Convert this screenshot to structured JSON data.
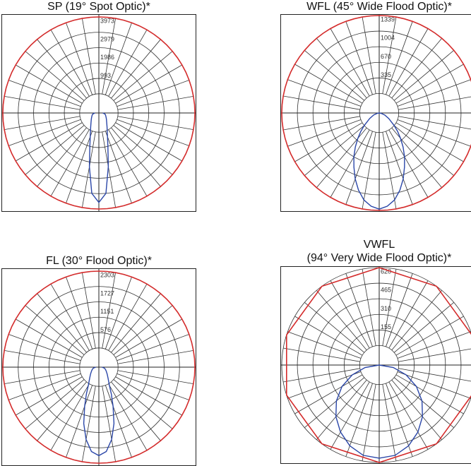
{
  "chart_data": [
    {
      "type": "polar",
      "title": "SP (19° Spot Optic)*",
      "ticks": [
        "993",
        "1986",
        "2979",
        "3973"
      ],
      "rmax": 4400,
      "outline_sides": 72,
      "outline_color": "#d42b2b",
      "curve_color": "#2a46a8",
      "curve": [
        [
          0,
          4100
        ],
        [
          5,
          3700
        ],
        [
          10,
          2500
        ],
        [
          15,
          1600
        ],
        [
          20,
          1150
        ],
        [
          25,
          900
        ],
        [
          30,
          750
        ],
        [
          40,
          560
        ],
        [
          50,
          450
        ],
        [
          60,
          380
        ],
        [
          70,
          330
        ],
        [
          80,
          290
        ],
        [
          90,
          180
        ]
      ]
    },
    {
      "type": "polar",
      "title": "WFL (45° Wide Flood Optic)*",
      "ticks": [
        "335",
        "670",
        "1004",
        "1339"
      ],
      "rmax": 1500,
      "outline_sides": 72,
      "outline_color": "#d42b2b",
      "curve_color": "#2a46a8",
      "curve": [
        [
          0,
          1480
        ],
        [
          5,
          1440
        ],
        [
          10,
          1360
        ],
        [
          15,
          1230
        ],
        [
          20,
          1080
        ],
        [
          25,
          920
        ],
        [
          30,
          780
        ],
        [
          35,
          640
        ],
        [
          40,
          510
        ],
        [
          45,
          400
        ],
        [
          50,
          300
        ],
        [
          60,
          170
        ],
        [
          70,
          90
        ],
        [
          80,
          30
        ],
        [
          90,
          0
        ]
      ]
    },
    {
      "type": "polar",
      "title": "FL (30° Flood Optic)*",
      "ticks": [
        "576",
        "1151",
        "1727",
        "2303"
      ],
      "rmax": 2550,
      "outline_sides": 72,
      "outline_color": "#d42b2b",
      "curve_color": "#2a46a8",
      "curve": [
        [
          0,
          2350
        ],
        [
          5,
          2250
        ],
        [
          10,
          1950
        ],
        [
          15,
          1550
        ],
        [
          20,
          1100
        ],
        [
          25,
          780
        ],
        [
          30,
          560
        ],
        [
          40,
          380
        ],
        [
          50,
          290
        ],
        [
          60,
          230
        ],
        [
          70,
          190
        ],
        [
          80,
          150
        ],
        [
          90,
          80
        ]
      ]
    },
    {
      "type": "polar",
      "title": "VWFL",
      "subtitle": "(94° Very Wide Flood Optic)*",
      "ticks": [
        "155",
        "310",
        "465",
        "620"
      ],
      "rmax": 680,
      "outline_sides": 10,
      "outline_color": "#d42b2b",
      "curve_color": "#2a46a8",
      "curve": [
        [
          0,
          650
        ],
        [
          10,
          640
        ],
        [
          20,
          600
        ],
        [
          30,
          540
        ],
        [
          40,
          470
        ],
        [
          50,
          390
        ],
        [
          60,
          300
        ],
        [
          70,
          200
        ],
        [
          80,
          100
        ],
        [
          90,
          0
        ]
      ]
    }
  ]
}
